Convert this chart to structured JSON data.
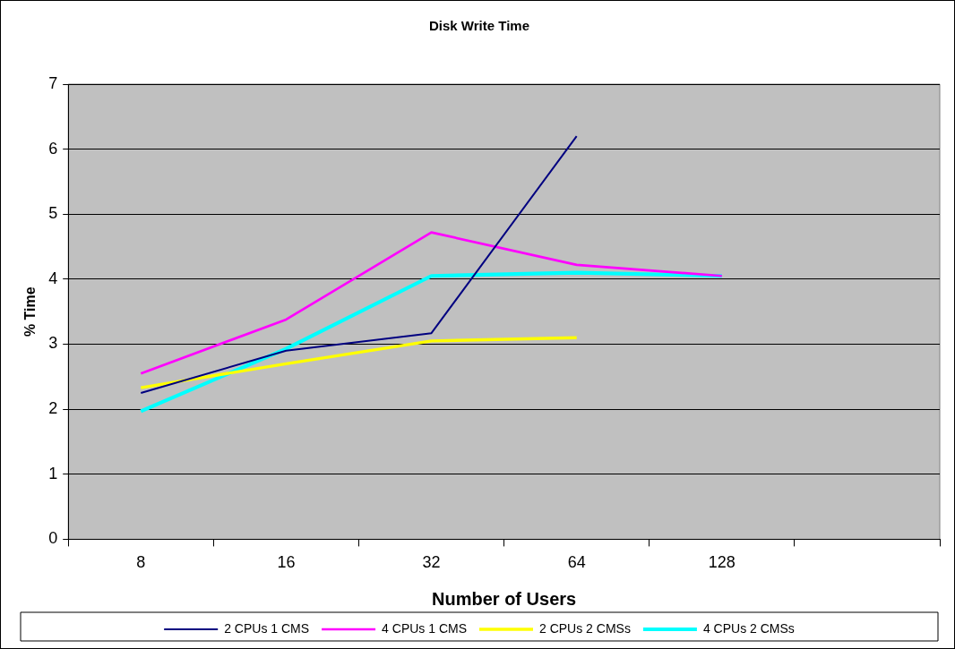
{
  "chart_data": {
    "type": "line",
    "title": "Disk Write Time",
    "xlabel": "Number of Users",
    "ylabel": "% Time",
    "categories": [
      "8",
      "16",
      "32",
      "64",
      "128",
      null
    ],
    "series": [
      {
        "name": "2 CPUs 1 CMS",
        "color": "#000080",
        "values": [
          2.25,
          2.9,
          3.17,
          6.2,
          null,
          null
        ]
      },
      {
        "name": "4 CPUs 1 CMS",
        "color": "#ff00ff",
        "values": [
          2.55,
          3.38,
          4.72,
          4.22,
          4.05,
          null
        ]
      },
      {
        "name": "2 CPUs 2 CMSs",
        "color": "#ffff00",
        "values": [
          2.33,
          2.7,
          3.05,
          3.1,
          null,
          null
        ]
      },
      {
        "name": "4 CPUs 2 CMSs",
        "color": "#00ffff",
        "values": [
          1.97,
          2.93,
          4.05,
          4.1,
          4.05,
          null
        ]
      }
    ],
    "ylim": [
      0,
      7
    ],
    "yticks": [
      0,
      1,
      2,
      3,
      4,
      5,
      6,
      7
    ],
    "grid": "y",
    "legend": "bottom",
    "marker": "none",
    "line_style": "solid"
  }
}
